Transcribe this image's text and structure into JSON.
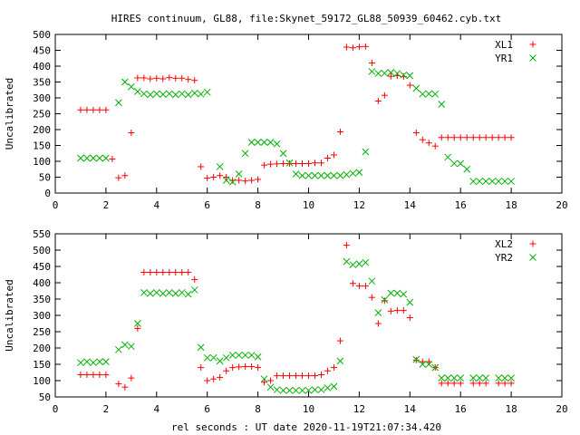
{
  "title": "HIRES continuum, GL88, file:Skynet_59172_GL88_50939_60462.cyb.txt",
  "colors": {
    "red": "#ff0000",
    "green": "#00b000",
    "axis": "#000000"
  },
  "chart_data": [
    {
      "type": "scatter",
      "ylabel": "Uncalibrated",
      "xlim": [
        0,
        20
      ],
      "ylim": [
        0,
        500
      ],
      "xticks": [
        0,
        2,
        4,
        6,
        8,
        10,
        12,
        14,
        16,
        18,
        20
      ],
      "yticks": [
        0,
        50,
        100,
        150,
        200,
        250,
        300,
        350,
        400,
        450,
        500
      ],
      "legend_position": "top-right",
      "series": [
        {
          "name": "XL1",
          "marker": "plus",
          "color": "#ff0000",
          "x": [
            1.0,
            1.25,
            1.5,
            1.75,
            2.0,
            2.25,
            2.5,
            2.75,
            3.0,
            3.25,
            3.5,
            3.75,
            4.0,
            4.25,
            4.5,
            4.75,
            5.0,
            5.25,
            5.5,
            5.75,
            6.0,
            6.25,
            6.5,
            6.75,
            7.0,
            7.25,
            7.5,
            7.75,
            8.0,
            8.25,
            8.5,
            8.75,
            9.0,
            9.25,
            9.5,
            9.75,
            10.0,
            10.25,
            10.5,
            10.75,
            11.0,
            11.25,
            11.5,
            11.75,
            12.0,
            12.25,
            12.5,
            12.75,
            13.0,
            13.25,
            13.5,
            13.75,
            14.0,
            14.25,
            14.5,
            14.75,
            15.0,
            15.25,
            15.5,
            15.75,
            16.0,
            16.25,
            16.5,
            16.75,
            17.0,
            17.25,
            17.5,
            17.75,
            18.0
          ],
          "values": [
            262,
            262,
            262,
            262,
            262,
            107,
            48,
            55,
            190,
            363,
            363,
            360,
            362,
            360,
            364,
            362,
            362,
            358,
            355,
            83,
            47,
            50,
            55,
            50,
            40,
            40,
            38,
            40,
            43,
            88,
            91,
            92,
            93,
            93,
            93,
            93,
            93,
            95,
            95,
            110,
            120,
            193,
            460,
            458,
            461,
            462,
            410,
            290,
            308,
            368,
            370,
            367,
            340,
            190,
            168,
            158,
            148,
            175,
            175,
            175,
            175,
            175,
            175,
            175,
            175,
            175,
            175,
            175,
            175
          ]
        },
        {
          "name": "YR1",
          "marker": "cross",
          "color": "#00b000",
          "x": [
            1.0,
            1.25,
            1.5,
            1.75,
            2.0,
            2.5,
            2.75,
            3.0,
            3.25,
            3.5,
            3.75,
            4.0,
            4.25,
            4.5,
            4.75,
            5.0,
            5.25,
            5.5,
            5.75,
            6.0,
            6.5,
            6.75,
            7.0,
            7.25,
            7.5,
            7.75,
            8.0,
            8.25,
            8.5,
            8.75,
            9.0,
            9.25,
            9.5,
            9.75,
            10.0,
            10.25,
            10.5,
            10.75,
            11.0,
            11.25,
            11.5,
            11.75,
            12.0,
            12.25,
            12.5,
            12.75,
            13.0,
            13.25,
            13.5,
            13.75,
            14.0,
            14.25,
            14.5,
            14.75,
            15.0,
            15.25,
            15.5,
            15.75,
            16.0,
            16.25,
            16.5,
            16.75,
            17.0,
            17.25,
            17.5,
            17.75,
            18.0
          ],
          "values": [
            110,
            110,
            110,
            110,
            110,
            285,
            350,
            335,
            320,
            313,
            310,
            313,
            311,
            313,
            310,
            313,
            310,
            315,
            312,
            318,
            83,
            40,
            35,
            60,
            125,
            160,
            160,
            160,
            160,
            155,
            125,
            95,
            60,
            55,
            55,
            55,
            55,
            55,
            55,
            55,
            58,
            62,
            65,
            130,
            383,
            377,
            378,
            380,
            377,
            372,
            370,
            330,
            312,
            313,
            312,
            280,
            113,
            93,
            93,
            75,
            37,
            37,
            37,
            37,
            37,
            37,
            37
          ]
        }
      ]
    },
    {
      "type": "scatter",
      "ylabel": "Uncalibrated",
      "xlabel": "rel seconds : UT date 2020-11-19T21:07:34.420",
      "xlim": [
        0,
        20
      ],
      "ylim": [
        50,
        550
      ],
      "xticks": [
        0,
        2,
        4,
        6,
        8,
        10,
        12,
        14,
        16,
        18,
        20
      ],
      "yticks": [
        50,
        100,
        150,
        200,
        250,
        300,
        350,
        400,
        450,
        500,
        550
      ],
      "legend_position": "top-right",
      "series": [
        {
          "name": "XL2",
          "marker": "plus",
          "color": "#ff0000",
          "x": [
            1.0,
            1.25,
            1.5,
            1.75,
            2.0,
            2.5,
            2.75,
            3.0,
            3.25,
            3.5,
            3.75,
            4.0,
            4.25,
            4.5,
            4.75,
            5.0,
            5.25,
            5.5,
            5.75,
            6.0,
            6.25,
            6.5,
            6.75,
            7.0,
            7.25,
            7.5,
            7.75,
            8.0,
            8.25,
            8.5,
            8.75,
            9.0,
            9.25,
            9.5,
            9.75,
            10.0,
            10.25,
            10.5,
            10.75,
            11.0,
            11.25,
            11.5,
            11.75,
            12.0,
            12.25,
            12.5,
            12.75,
            13.0,
            13.25,
            13.5,
            13.75,
            14.0,
            14.25,
            14.5,
            14.75,
            15.0,
            15.25,
            15.5,
            15.75,
            16.0,
            16.5,
            16.75,
            17.0,
            17.5,
            17.75,
            18.0
          ],
          "values": [
            118,
            118,
            118,
            118,
            118,
            90,
            80,
            108,
            260,
            432,
            432,
            432,
            432,
            432,
            432,
            432,
            432,
            410,
            140,
            100,
            105,
            110,
            130,
            140,
            142,
            143,
            143,
            140,
            95,
            100,
            115,
            115,
            115,
            115,
            115,
            115,
            115,
            118,
            130,
            140,
            222,
            515,
            398,
            390,
            390,
            355,
            275,
            345,
            313,
            315,
            315,
            293,
            163,
            158,
            158,
            140,
            92,
            92,
            92,
            92,
            92,
            92,
            92,
            92,
            92,
            92
          ]
        },
        {
          "name": "YR2",
          "marker": "cross",
          "color": "#00b000",
          "x": [
            1.0,
            1.25,
            1.5,
            1.75,
            2.0,
            2.5,
            2.75,
            3.0,
            3.25,
            3.5,
            3.75,
            4.0,
            4.25,
            4.5,
            4.75,
            5.0,
            5.25,
            5.5,
            5.75,
            6.0,
            6.25,
            6.5,
            6.75,
            7.0,
            7.25,
            7.5,
            7.75,
            8.0,
            8.25,
            8.5,
            8.75,
            9.0,
            9.25,
            9.5,
            9.75,
            10.0,
            10.25,
            10.5,
            10.75,
            11.0,
            11.25,
            11.5,
            11.75,
            12.0,
            12.25,
            12.5,
            12.75,
            13.0,
            13.25,
            13.5,
            13.75,
            14.0,
            14.25,
            14.5,
            14.75,
            15.0,
            15.25,
            15.5,
            15.75,
            16.0,
            16.5,
            16.75,
            17.0,
            17.5,
            17.75,
            18.0
          ],
          "values": [
            155,
            158,
            155,
            158,
            158,
            195,
            210,
            205,
            275,
            370,
            367,
            370,
            367,
            370,
            367,
            370,
            365,
            378,
            202,
            170,
            170,
            160,
            170,
            178,
            178,
            178,
            178,
            173,
            105,
            80,
            72,
            70,
            70,
            70,
            70,
            70,
            72,
            72,
            78,
            82,
            160,
            465,
            455,
            458,
            462,
            405,
            308,
            348,
            368,
            368,
            365,
            340,
            165,
            150,
            150,
            140,
            108,
            108,
            108,
            108,
            108,
            108,
            108,
            108,
            108,
            108
          ]
        }
      ]
    }
  ]
}
